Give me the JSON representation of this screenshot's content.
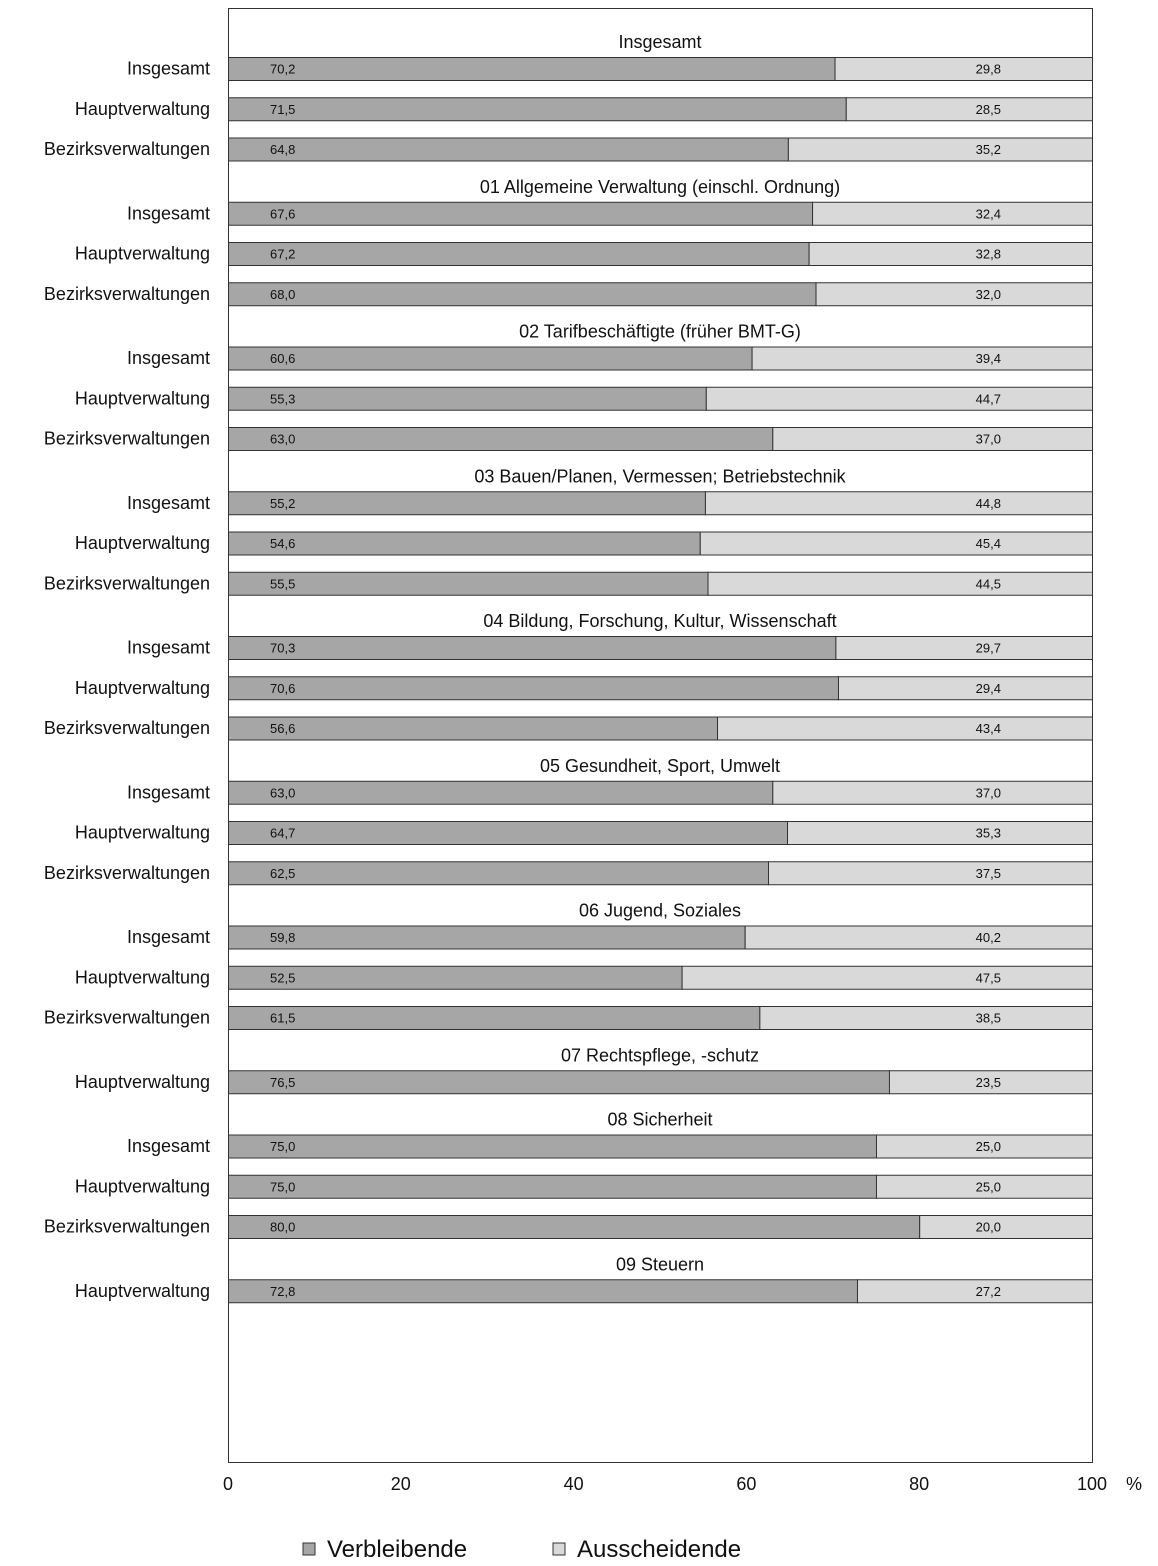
{
  "chart_data": {
    "type": "bar",
    "orientation": "horizontal",
    "stacked": true,
    "xlim": [
      0,
      100
    ],
    "x_ticks": [
      "0",
      "20",
      "40",
      "60",
      "80",
      "100"
    ],
    "x_unit": "%",
    "grid": false,
    "legend_position": "bottom",
    "colors": {
      "verbleibende": "#a6a6a6",
      "ausscheidende": "#d9d9d9",
      "stroke": "#333333"
    },
    "legend": [
      {
        "name": "Verbleibende",
        "color": "#a6a6a6"
      },
      {
        "name": "Ausscheidende",
        "color": "#d9d9d9"
      }
    ],
    "groups": [
      {
        "title": "Insgesamt",
        "rows": [
          {
            "label": "Insgesamt",
            "verbleibende": 70.2,
            "verbleibende_label": "70,2",
            "ausscheidende": 29.8,
            "ausscheidende_label": "29,8"
          },
          {
            "label": "Hauptverwaltung",
            "verbleibende": 71.5,
            "verbleibende_label": "71,5",
            "ausscheidende": 28.5,
            "ausscheidende_label": "28,5"
          },
          {
            "label": "Bezirksverwaltungen",
            "verbleibende": 64.8,
            "verbleibende_label": "64,8",
            "ausscheidende": 35.2,
            "ausscheidende_label": "35,2"
          }
        ]
      },
      {
        "title": "01 Allgemeine Verwaltung (einschl. Ordnung)",
        "rows": [
          {
            "label": "Insgesamt",
            "verbleibende": 67.6,
            "verbleibende_label": "67,6",
            "ausscheidende": 32.4,
            "ausscheidende_label": "32,4"
          },
          {
            "label": "Hauptverwaltung",
            "verbleibende": 67.2,
            "verbleibende_label": "67,2",
            "ausscheidende": 32.8,
            "ausscheidende_label": "32,8"
          },
          {
            "label": "Bezirksverwaltungen",
            "verbleibende": 68.0,
            "verbleibende_label": "68,0",
            "ausscheidende": 32.0,
            "ausscheidende_label": "32,0"
          }
        ]
      },
      {
        "title": "02 Tarifbeschäftigte (früher BMT-G)",
        "rows": [
          {
            "label": "Insgesamt",
            "verbleibende": 60.6,
            "verbleibende_label": "60,6",
            "ausscheidende": 39.4,
            "ausscheidende_label": "39,4"
          },
          {
            "label": "Hauptverwaltung",
            "verbleibende": 55.3,
            "verbleibende_label": "55,3",
            "ausscheidende": 44.7,
            "ausscheidende_label": "44,7"
          },
          {
            "label": "Bezirksverwaltungen",
            "verbleibende": 63.0,
            "verbleibende_label": "63,0",
            "ausscheidende": 37.0,
            "ausscheidende_label": "37,0"
          }
        ]
      },
      {
        "title": "03 Bauen/Planen, Vermessen; Betriebstechnik",
        "rows": [
          {
            "label": "Insgesamt",
            "verbleibende": 55.2,
            "verbleibende_label": "55,2",
            "ausscheidende": 44.8,
            "ausscheidende_label": "44,8"
          },
          {
            "label": "Hauptverwaltung",
            "verbleibende": 54.6,
            "verbleibende_label": "54,6",
            "ausscheidende": 45.4,
            "ausscheidende_label": "45,4"
          },
          {
            "label": "Bezirksverwaltungen",
            "verbleibende": 55.5,
            "verbleibende_label": "55,5",
            "ausscheidende": 44.5,
            "ausscheidende_label": "44,5"
          }
        ]
      },
      {
        "title": "04 Bildung, Forschung, Kultur, Wissenschaft",
        "rows": [
          {
            "label": "Insgesamt",
            "verbleibende": 70.3,
            "verbleibende_label": "70,3",
            "ausscheidende": 29.7,
            "ausscheidende_label": "29,7"
          },
          {
            "label": "Hauptverwaltung",
            "verbleibende": 70.6,
            "verbleibende_label": "70,6",
            "ausscheidende": 29.4,
            "ausscheidende_label": "29,4"
          },
          {
            "label": "Bezirksverwaltungen",
            "verbleibende": 56.6,
            "verbleibende_label": "56,6",
            "ausscheidende": 43.4,
            "ausscheidende_label": "43,4"
          }
        ]
      },
      {
        "title": "05 Gesundheit, Sport, Umwelt",
        "rows": [
          {
            "label": "Insgesamt",
            "verbleibende": 63.0,
            "verbleibende_label": "63,0",
            "ausscheidende": 37.0,
            "ausscheidende_label": "37,0"
          },
          {
            "label": "Hauptverwaltung",
            "verbleibende": 64.7,
            "verbleibende_label": "64,7",
            "ausscheidende": 35.3,
            "ausscheidende_label": "35,3"
          },
          {
            "label": "Bezirksverwaltungen",
            "verbleibende": 62.5,
            "verbleibende_label": "62,5",
            "ausscheidende": 37.5,
            "ausscheidende_label": "37,5"
          }
        ]
      },
      {
        "title": "06 Jugend, Soziales",
        "rows": [
          {
            "label": "Insgesamt",
            "verbleibende": 59.8,
            "verbleibende_label": "59,8",
            "ausscheidende": 40.2,
            "ausscheidende_label": "40,2"
          },
          {
            "label": "Hauptverwaltung",
            "verbleibende": 52.5,
            "verbleibende_label": "52,5",
            "ausscheidende": 47.5,
            "ausscheidende_label": "47,5"
          },
          {
            "label": "Bezirksverwaltungen",
            "verbleibende": 61.5,
            "verbleibende_label": "61,5",
            "ausscheidende": 38.5,
            "ausscheidende_label": "38,5"
          }
        ]
      },
      {
        "title": "07 Rechtspflege, -schutz",
        "rows": [
          {
            "label": "Hauptverwaltung",
            "verbleibende": 76.5,
            "verbleibende_label": "76,5",
            "ausscheidende": 23.5,
            "ausscheidende_label": "23,5"
          }
        ]
      },
      {
        "title": "08 Sicherheit",
        "rows": [
          {
            "label": "Insgesamt",
            "verbleibende": 75.0,
            "verbleibende_label": "75,0",
            "ausscheidende": 25.0,
            "ausscheidende_label": "25,0"
          },
          {
            "label": "Hauptverwaltung",
            "verbleibende": 75.0,
            "verbleibende_label": "75,0",
            "ausscheidende": 25.0,
            "ausscheidende_label": "25,0"
          },
          {
            "label": "Bezirksverwaltungen",
            "verbleibende": 80.0,
            "verbleibende_label": "80,0",
            "ausscheidende": 20.0,
            "ausscheidende_label": "20,0"
          }
        ]
      },
      {
        "title": "09 Steuern",
        "rows": [
          {
            "label": "Hauptverwaltung",
            "verbleibende": 72.8,
            "verbleibende_label": "72,8",
            "ausscheidende": 27.2,
            "ausscheidende_label": "27,2"
          }
        ]
      }
    ]
  }
}
